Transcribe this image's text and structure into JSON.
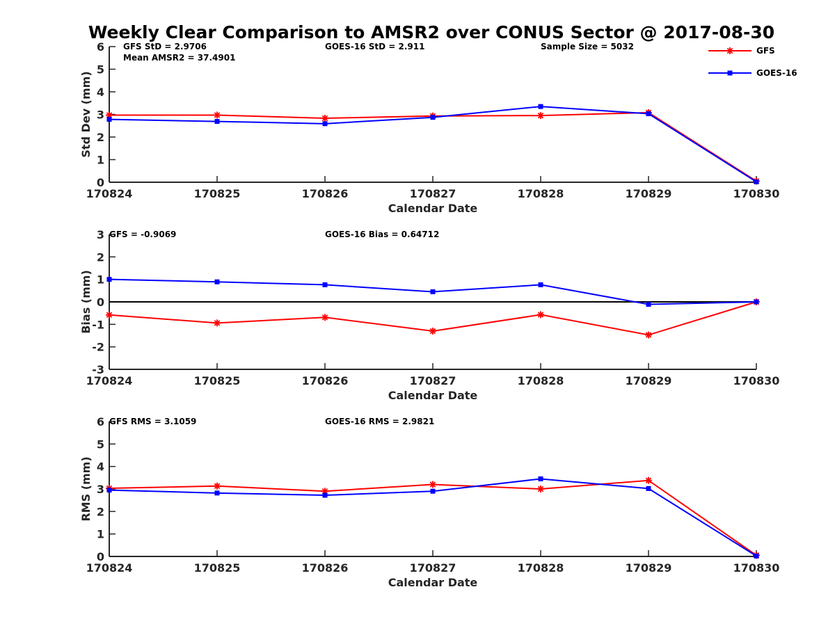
{
  "title": "Weekly Clear Comparison to AMSR2 over CONUS Sector @ 2017-08-30",
  "colors": {
    "gfs": "#ff0000",
    "goes": "#0000ff",
    "axis": "#262626",
    "zero_line": "#000000"
  },
  "legend": {
    "placement": "top-right",
    "entries": [
      {
        "name": "GFS",
        "color": "#ff0000",
        "marker": "asterisk"
      },
      {
        "name": "GOES-16",
        "color": "#0000ff",
        "marker": "square"
      }
    ]
  },
  "chart_data": [
    {
      "type": "line",
      "id": "stddev",
      "xlabel": "Calendar Date",
      "ylabel": "Std Dev (mm)",
      "categories": [
        "170824",
        "170825",
        "170826",
        "170827",
        "170828",
        "170829",
        "170830"
      ],
      "ylim": [
        0,
        6
      ],
      "yticks": [
        0,
        1,
        2,
        3,
        4,
        5,
        6
      ],
      "zero_line": false,
      "grid": false,
      "series": [
        {
          "name": "GFS",
          "color": "#ff0000",
          "marker": "asterisk",
          "values": [
            2.97,
            2.97,
            2.83,
            2.93,
            2.95,
            3.08,
            0.05
          ]
        },
        {
          "name": "GOES-16",
          "color": "#0000ff",
          "marker": "square",
          "values": [
            2.78,
            2.69,
            2.59,
            2.87,
            3.35,
            3.03,
            0.02
          ]
        }
      ],
      "annotations": [
        "GFS StD = 2.9706",
        "Mean AMSR2 = 37.4901",
        "GOES-16 StD = 2.911",
        "Sample Size = 5032"
      ]
    },
    {
      "type": "line",
      "id": "bias",
      "xlabel": "Calendar Date",
      "ylabel": "Bias (mm)",
      "categories": [
        "170824",
        "170825",
        "170826",
        "170827",
        "170828",
        "170829",
        "170830"
      ],
      "ylim": [
        -3,
        3
      ],
      "yticks": [
        -3,
        -2,
        -1,
        0,
        1,
        2,
        3
      ],
      "zero_line": true,
      "grid": false,
      "series": [
        {
          "name": "GFS",
          "color": "#ff0000",
          "marker": "asterisk",
          "values": [
            -0.58,
            -0.94,
            -0.69,
            -1.3,
            -0.57,
            -1.47,
            0.0
          ]
        },
        {
          "name": "GOES-16",
          "color": "#0000ff",
          "marker": "square",
          "values": [
            1.0,
            0.89,
            0.76,
            0.45,
            0.76,
            -0.11,
            0.0
          ]
        }
      ],
      "annotations": [
        "GFS = -0.9069",
        "GOES-16 Bias  = 0.64712"
      ]
    },
    {
      "type": "line",
      "id": "rms",
      "xlabel": "Calendar Date",
      "ylabel": "RMS (mm)",
      "categories": [
        "170824",
        "170825",
        "170826",
        "170827",
        "170828",
        "170829",
        "170830"
      ],
      "ylim": [
        0,
        6
      ],
      "yticks": [
        0,
        1,
        2,
        3,
        4,
        5,
        6
      ],
      "zero_line": false,
      "grid": false,
      "series": [
        {
          "name": "GFS",
          "color": "#ff0000",
          "marker": "asterisk",
          "values": [
            3.03,
            3.13,
            2.9,
            3.2,
            3.0,
            3.38,
            0.05
          ]
        },
        {
          "name": "GOES-16",
          "color": "#0000ff",
          "marker": "square",
          "values": [
            2.95,
            2.82,
            2.72,
            2.9,
            3.45,
            3.02,
            0.02
          ]
        }
      ],
      "annotations": [
        "GFS RMS = 3.1059",
        "GOES-16 RMS = 2.9821"
      ]
    }
  ]
}
